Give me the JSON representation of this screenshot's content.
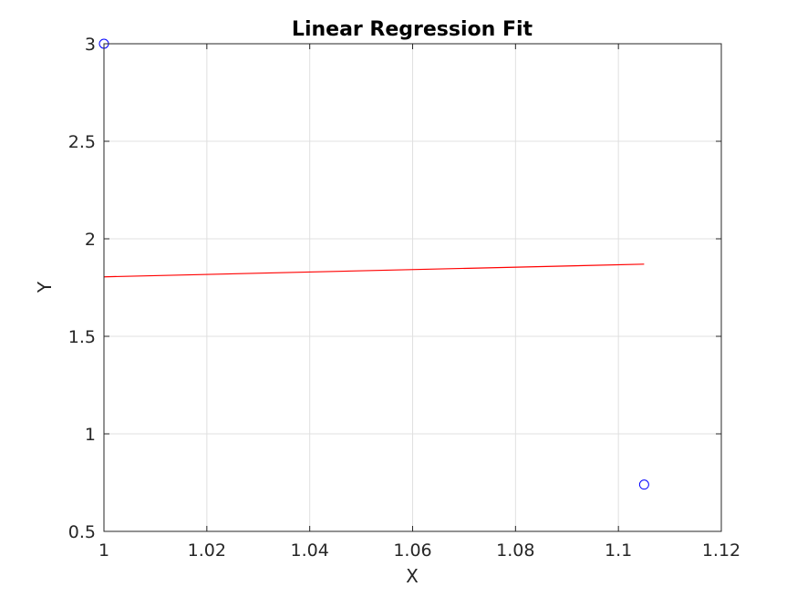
{
  "chart_data": {
    "type": "scatter",
    "title": "Linear Regression Fit",
    "xlabel": "X",
    "ylabel": "Y",
    "xlim": [
      1,
      1.12
    ],
    "ylim": [
      0.5,
      3
    ],
    "xticks": [
      "1",
      "1.02",
      "1.04",
      "1.06",
      "1.08",
      "1.1",
      "1.12"
    ],
    "yticks": [
      "0.5",
      "1",
      "1.5",
      "2",
      "2.5",
      "3"
    ],
    "grid": true,
    "points": [
      {
        "x": 1.0,
        "y": 3.0
      },
      {
        "x": 1.105,
        "y": 0.74
      }
    ],
    "fit_line": {
      "x": [
        1.0,
        1.105
      ],
      "y": [
        1.805,
        1.87
      ]
    },
    "colors": {
      "points": "#0000ff",
      "fit_line": "#ff0000",
      "grid": "#e0e0e0",
      "axes": "#262626"
    }
  }
}
